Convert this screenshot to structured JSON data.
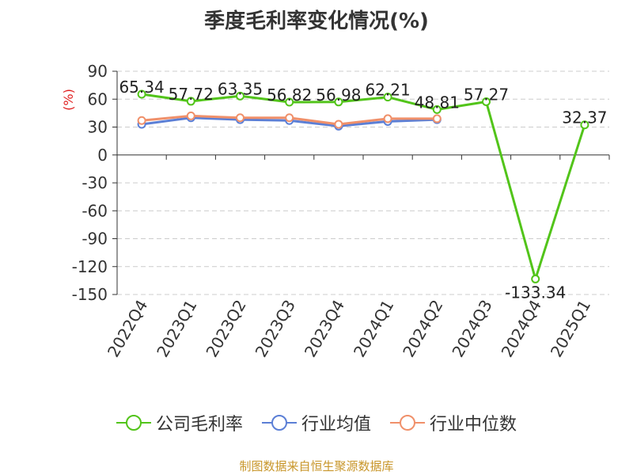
{
  "title": "季度毛利率变化情况(%)",
  "source": "制图数据来自恒生聚源数据库",
  "colors": {
    "company": "#52c41a",
    "industry_avg": "#5b7fd6",
    "industry_median": "#f0906a",
    "grid": "#cccccc",
    "axis": "#333333",
    "unit": "#e02020"
  },
  "chart_data": {
    "type": "line",
    "title": "季度毛利率变化情况(%)",
    "ylabel": "(%)",
    "xlabel": "",
    "ylim": [
      -150,
      90
    ],
    "yticks": [
      90,
      60,
      30,
      0,
      -30,
      -60,
      -90,
      -120,
      -150
    ],
    "categories": [
      "2022Q4",
      "2023Q1",
      "2023Q2",
      "2023Q3",
      "2023Q4",
      "2024Q1",
      "2024Q2",
      "2024Q3",
      "2024Q4",
      "2025Q1"
    ],
    "grid": true,
    "legend_position": "bottom",
    "series": [
      {
        "name": "公司毛利率",
        "key": "company",
        "values": [
          65.34,
          57.72,
          63.35,
          56.82,
          56.98,
          62.21,
          48.81,
          57.27,
          -133.34,
          32.37
        ],
        "labels": [
          "65.34",
          "57.72",
          "63.35",
          "56.82",
          "56.98",
          "62.21",
          "48.81",
          "57.27",
          "-133.34",
          "32.37"
        ]
      },
      {
        "name": "行业均值",
        "key": "industry_avg",
        "values": [
          33,
          40,
          38,
          37,
          31,
          36,
          38,
          null,
          null,
          null
        ]
      },
      {
        "name": "行业中位数",
        "key": "industry_median",
        "values": [
          37,
          42,
          40,
          40,
          33,
          39,
          39,
          null,
          null,
          null
        ]
      }
    ]
  },
  "legend": [
    {
      "label": "公司毛利率",
      "key": "company"
    },
    {
      "label": "行业均值",
      "key": "industry_avg"
    },
    {
      "label": "行业中位数",
      "key": "industry_median"
    }
  ]
}
